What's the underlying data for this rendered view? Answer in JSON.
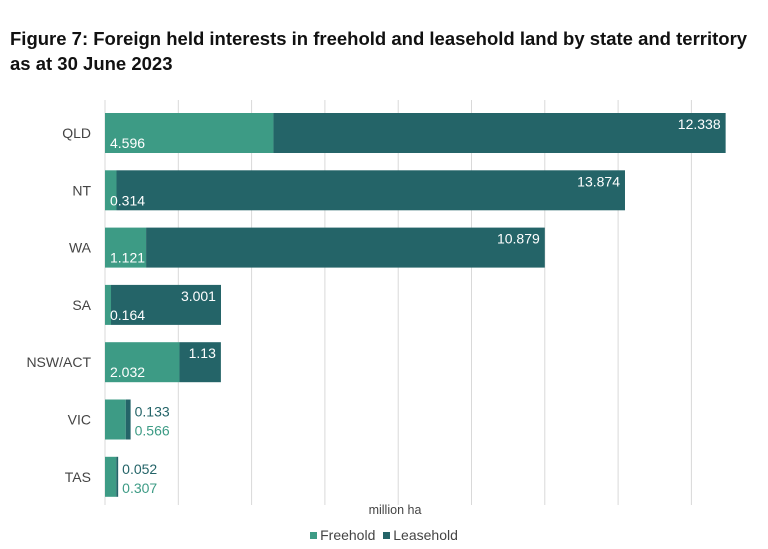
{
  "title": "Figure 7: Foreign held interests in freehold and leasehold land by state and territory as at 30 June 2023",
  "colors": {
    "freehold": "#3d9b85",
    "leasehold": "#246468",
    "grid": "#d9d9d9"
  },
  "chart_data": {
    "type": "bar",
    "orientation": "horizontal",
    "stacked": true,
    "categories": [
      "QLD",
      "NT",
      "WA",
      "SA",
      "NSW/ACT",
      "VIC",
      "TAS"
    ],
    "series": [
      {
        "name": "Freehold",
        "values": [
          4.596,
          0.314,
          1.121,
          0.164,
          2.032,
          0.566,
          0.307
        ]
      },
      {
        "name": "Leasehold",
        "values": [
          12.338,
          13.874,
          10.879,
          3.001,
          1.13,
          0.133,
          0.052
        ]
      }
    ],
    "xlabel": "million ha",
    "ylabel": "",
    "xlim": [
      0,
      17
    ],
    "grid": true,
    "legend": "bottom"
  }
}
